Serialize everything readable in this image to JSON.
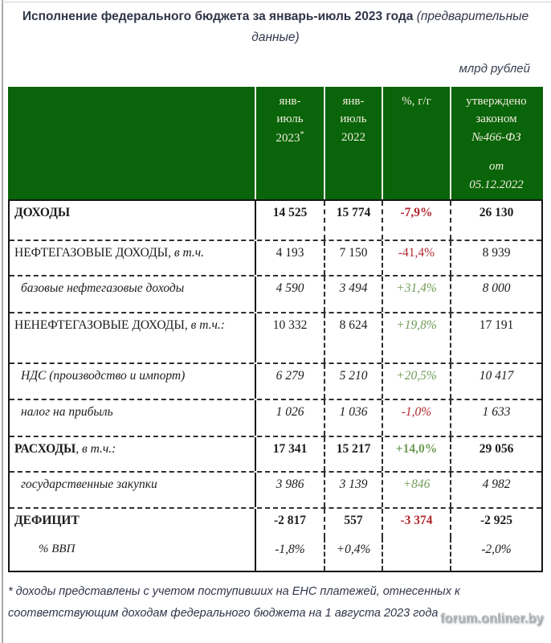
{
  "header": {
    "title_bold": "Исполнение федерального бюджета за январь-июль 2023 года",
    "title_italic": "(предварительные данные)",
    "units": "млрд рублей"
  },
  "table": {
    "columns": {
      "jan_jul_2023": {
        "text": "янв-\nиюль\n2023",
        "sup": "*"
      },
      "jan_jul_2022": {
        "text": "янв-\nиюль\n2022"
      },
      "pct_yoy": {
        "text": "%, г/г"
      },
      "approved_law": {
        "line1": "утверждено\nзаконом",
        "line2": "№466-ФЗ",
        "line3": "от\n05.12.2022"
      }
    },
    "rows": [
      {
        "label": "ДОХОДЫ",
        "label_suffix": "",
        "jan_jul_2023": "14 525",
        "jan_jul_2022": "15 774",
        "pct_yoy": "-7,9%",
        "approved_law": "26 130"
      },
      {
        "label": "НЕФТЕГАЗОВЫЕ ДОХОДЫ,",
        "label_suffix": " в т.ч.",
        "jan_jul_2023": "4 193",
        "jan_jul_2022": "7 150",
        "pct_yoy": "-41,4%",
        "approved_law": "8 939"
      },
      {
        "label": "базовые нефтегазовые доходы",
        "label_suffix": "",
        "jan_jul_2023": "4 590",
        "jan_jul_2022": "3 494",
        "pct_yoy": "+31,4%",
        "approved_law": "8 000"
      },
      {
        "label": "НЕНЕФТЕГАЗОВЫЕ ДОХОДЫ,",
        "label_suffix": " в т.ч.:",
        "jan_jul_2023": "10 332",
        "jan_jul_2022": "8 624",
        "pct_yoy": "+19,8%",
        "approved_law": "17 191"
      },
      {
        "label": "НДС (производство и импорт)",
        "label_suffix": "",
        "jan_jul_2023": "6 279",
        "jan_jul_2022": "5 210",
        "pct_yoy": "+20,5%",
        "approved_law": "10 417"
      },
      {
        "label": "налог на прибыль",
        "label_suffix": "",
        "jan_jul_2023": "1 026",
        "jan_jul_2022": "1 036",
        "pct_yoy": "-1,0%",
        "approved_law": "1 633"
      },
      {
        "label": "РАСХОДЫ",
        "label_suffix": ", в т.ч.:",
        "jan_jul_2023": "17 341",
        "jan_jul_2022": "15 217",
        "pct_yoy": "+14,0%",
        "approved_law": "29 056"
      },
      {
        "label": "государственные закупки",
        "label_suffix": "",
        "jan_jul_2023": "3 986",
        "jan_jul_2022": "3 139",
        "pct_yoy": "+846",
        "approved_law": "4 982"
      },
      {
        "label": "ДЕФИЦИТ",
        "label_suffix": "",
        "jan_jul_2023": "-2 817",
        "jan_jul_2022": "557",
        "pct_yoy": "-3 374",
        "approved_law": "-2 925"
      },
      {
        "label": "% ВВП",
        "label_suffix": "",
        "jan_jul_2023": "-1,8%",
        "jan_jul_2022": "+0,4%",
        "pct_yoy": "",
        "approved_law": "-2,0%"
      }
    ]
  },
  "footnote": "* доходы представлены с учетом поступивших на ЕНС платежей, отнесенных к соответствующим доходам федерального бюджета на 1 августа 2023 года",
  "watermark": "forum.onliner.by",
  "colors": {
    "header_green": "#0a6409",
    "negative_red": "#b2292e",
    "positive_green": "#6f9c57"
  }
}
